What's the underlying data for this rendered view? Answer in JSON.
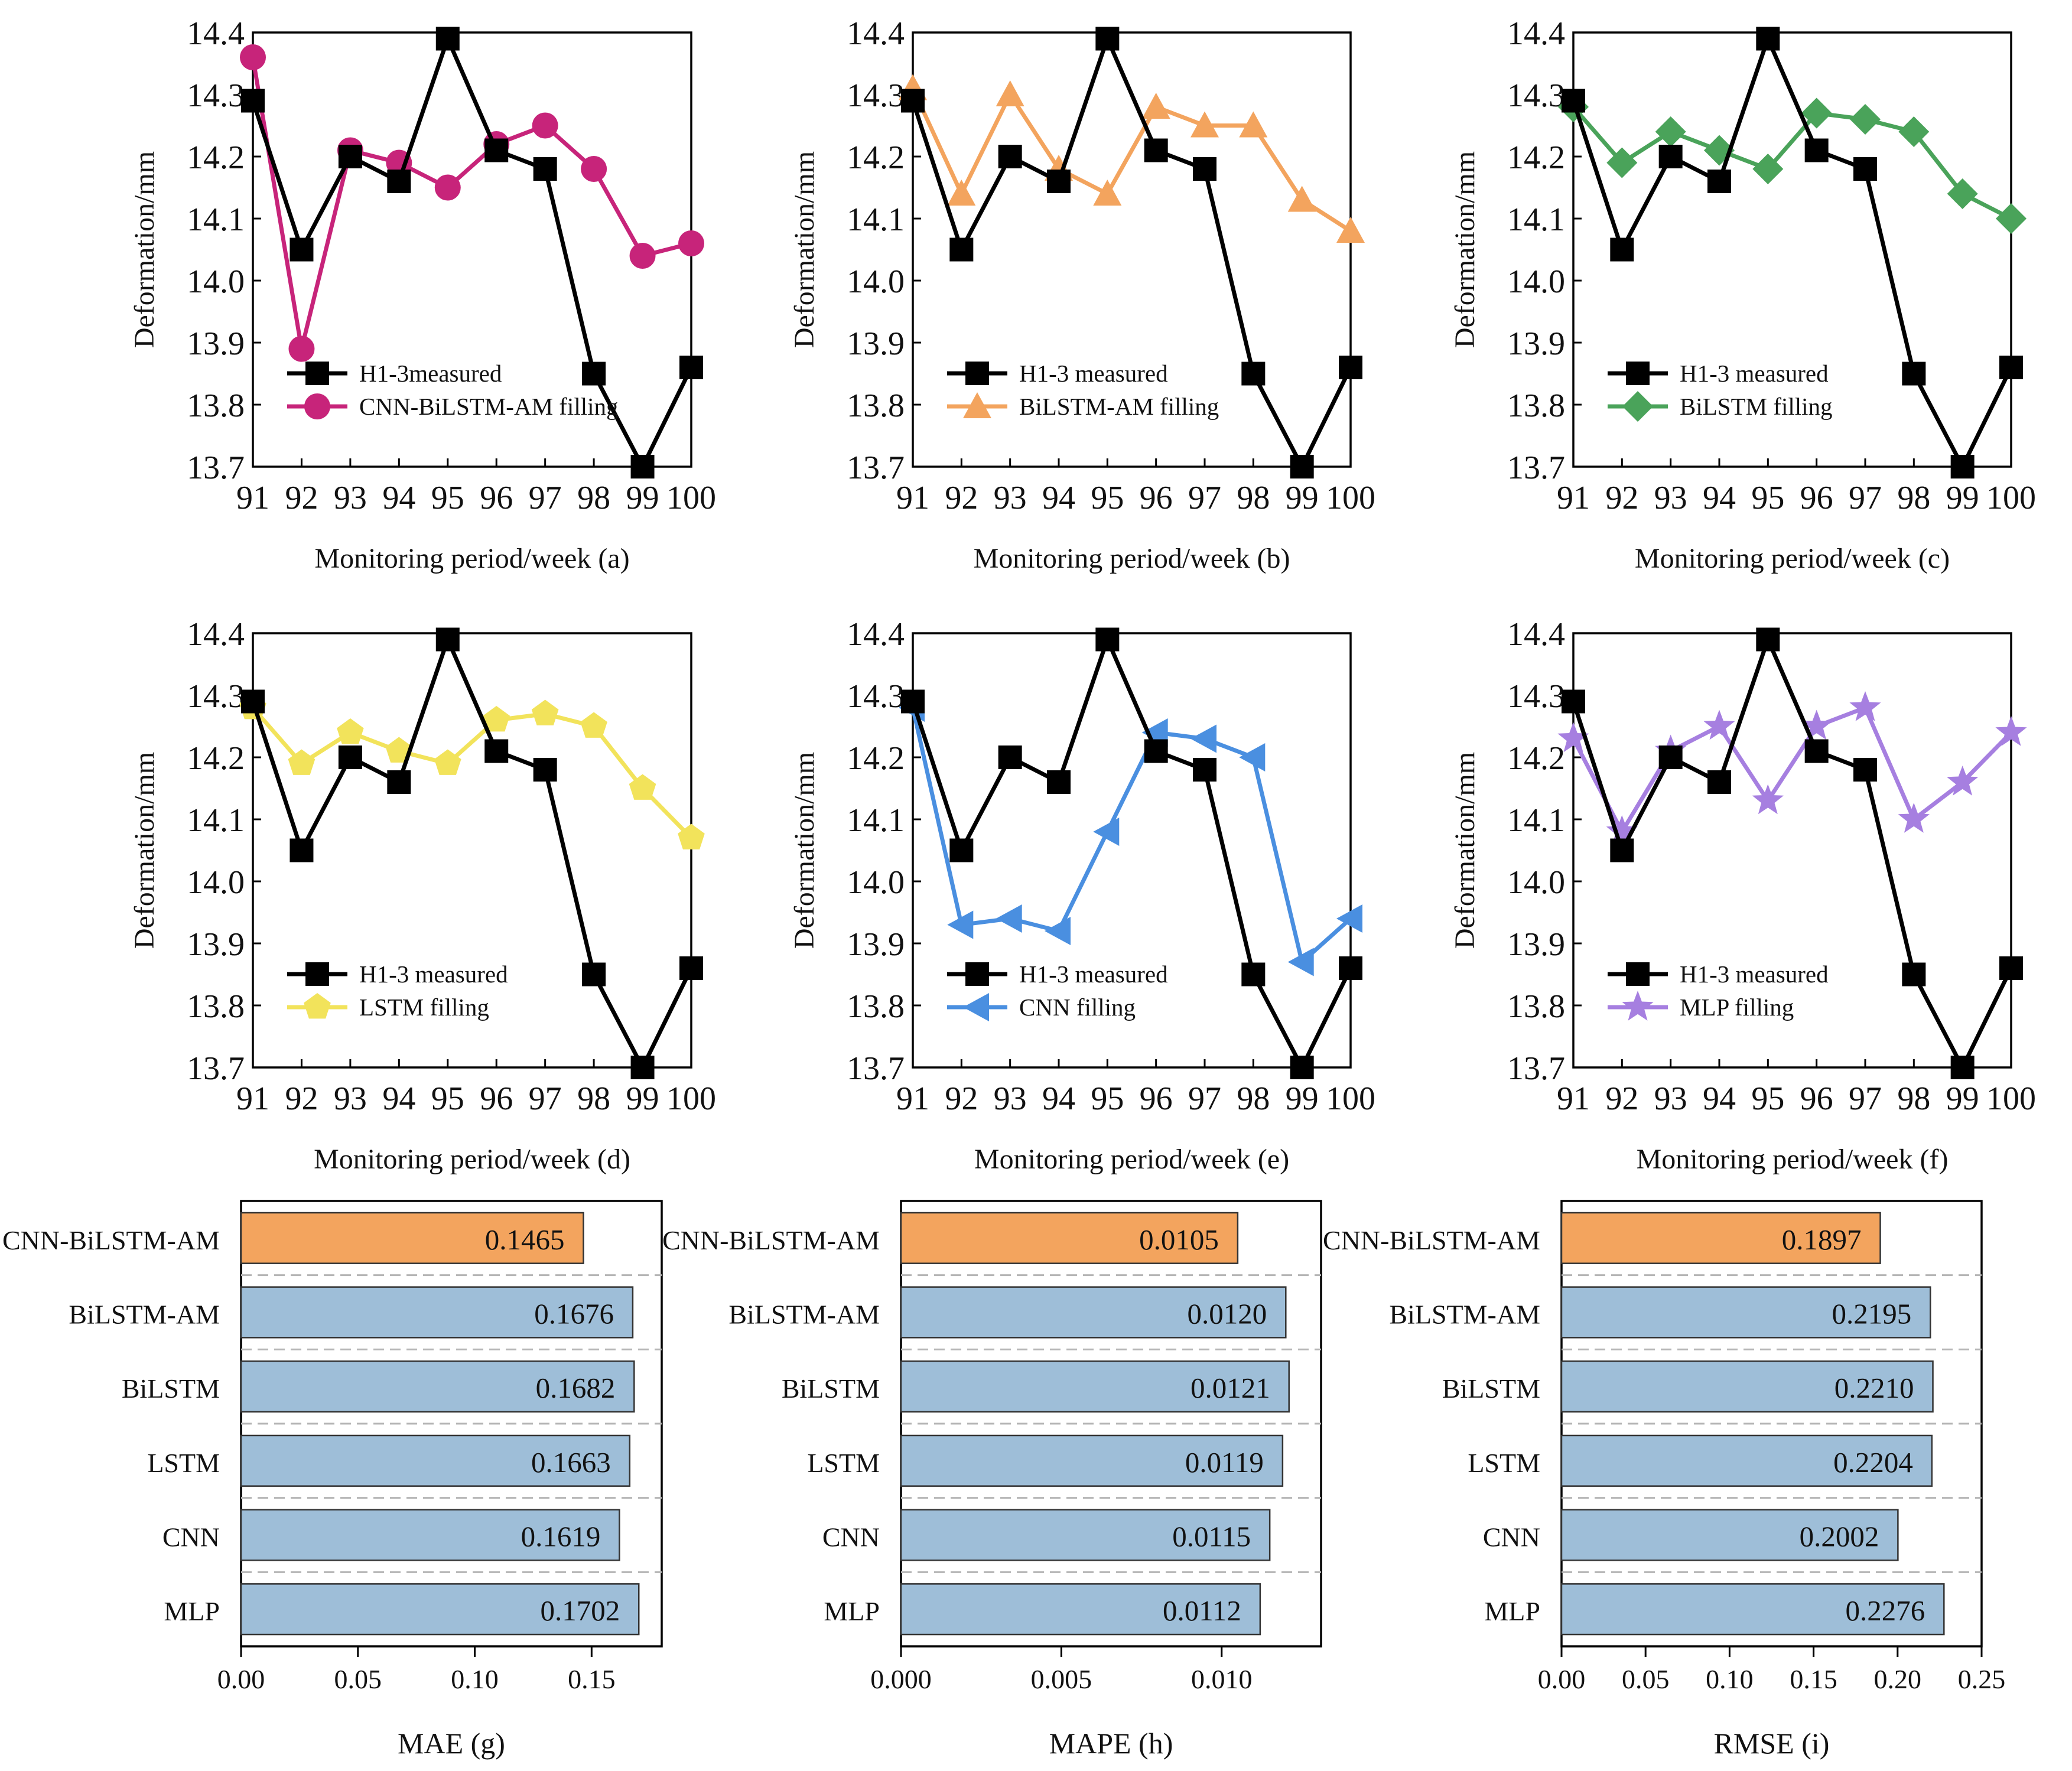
{
  "colors": {
    "measured": "#000000",
    "bar_default": "#9ebed8",
    "bar_best": "#f3a45e",
    "bar_stroke": "#333333"
  },
  "chart_data": [
    {
      "id": "a",
      "type": "line",
      "title": "",
      "xlabel": "Monitoring period/week (a)",
      "ylabel": "Deformation/mm",
      "x": [
        91,
        92,
        93,
        94,
        95,
        96,
        97,
        98,
        99,
        100
      ],
      "xlim": [
        91,
        100
      ],
      "ylim": [
        13.7,
        14.4
      ],
      "xticks": [
        "91",
        "92",
        "93",
        "94",
        "95",
        "96",
        "97",
        "98",
        "99",
        "100"
      ],
      "yticks": [
        "13.7",
        "13.8",
        "13.9",
        "14.0",
        "14.1",
        "14.2",
        "14.3",
        "14.4"
      ],
      "legend_position": "lower-left",
      "series": [
        {
          "name": "H1-3measured",
          "marker": "square",
          "color": "#000000",
          "values": [
            14.29,
            14.05,
            14.2,
            14.16,
            14.39,
            14.21,
            14.18,
            13.85,
            13.7,
            13.86
          ]
        },
        {
          "name": "CNN-BiLSTM-AM filling",
          "marker": "circle",
          "color": "#c7247a",
          "values": [
            14.36,
            13.89,
            14.21,
            14.19,
            14.15,
            14.22,
            14.25,
            14.18,
            14.04,
            14.06
          ]
        }
      ]
    },
    {
      "id": "b",
      "type": "line",
      "title": "",
      "xlabel": "Monitoring period/week (b)",
      "ylabel": "Deformation/mm",
      "x": [
        91,
        92,
        93,
        94,
        95,
        96,
        97,
        98,
        99,
        100
      ],
      "xlim": [
        91,
        100
      ],
      "ylim": [
        13.7,
        14.4
      ],
      "xticks": [
        "91",
        "92",
        "93",
        "94",
        "95",
        "96",
        "97",
        "98",
        "99",
        "100"
      ],
      "yticks": [
        "13.7",
        "13.8",
        "13.9",
        "14.0",
        "14.1",
        "14.2",
        "14.3",
        "14.4"
      ],
      "legend_position": "lower-left",
      "series": [
        {
          "name": "H1-3 measured",
          "marker": "square",
          "color": "#000000",
          "values": [
            14.29,
            14.05,
            14.2,
            14.16,
            14.39,
            14.21,
            14.18,
            13.85,
            13.7,
            13.86
          ]
        },
        {
          "name": "BiLSTM-AM filling",
          "marker": "triangle",
          "color": "#f3a45e",
          "values": [
            14.31,
            14.14,
            14.3,
            14.18,
            14.14,
            14.28,
            14.25,
            14.25,
            14.13,
            14.08
          ]
        }
      ]
    },
    {
      "id": "c",
      "type": "line",
      "title": "",
      "xlabel": "Monitoring period/week (c)",
      "ylabel": "Deformation/mm",
      "x": [
        91,
        92,
        93,
        94,
        95,
        96,
        97,
        98,
        99,
        100
      ],
      "xlim": [
        91,
        100
      ],
      "ylim": [
        13.7,
        14.4
      ],
      "xticks": [
        "91",
        "92",
        "93",
        "94",
        "95",
        "96",
        "97",
        "98",
        "99",
        "100"
      ],
      "yticks": [
        "13.7",
        "13.8",
        "13.9",
        "14.0",
        "14.1",
        "14.2",
        "14.3",
        "14.4"
      ],
      "legend_position": "lower-left",
      "series": [
        {
          "name": "H1-3 measured",
          "marker": "square",
          "color": "#000000",
          "values": [
            14.29,
            14.05,
            14.2,
            14.16,
            14.39,
            14.21,
            14.18,
            13.85,
            13.7,
            13.86
          ]
        },
        {
          "name": "BiLSTM filling",
          "marker": "diamond",
          "color": "#4aa35a",
          "values": [
            14.28,
            14.19,
            14.24,
            14.21,
            14.18,
            14.27,
            14.26,
            14.24,
            14.14,
            14.1
          ]
        }
      ]
    },
    {
      "id": "d",
      "type": "line",
      "title": "",
      "xlabel": "Monitoring period/week (d)",
      "ylabel": "Deformation/mm",
      "x": [
        91,
        92,
        93,
        94,
        95,
        96,
        97,
        98,
        99,
        100
      ],
      "xlim": [
        91,
        100
      ],
      "ylim": [
        13.7,
        14.4
      ],
      "xticks": [
        "91",
        "92",
        "93",
        "94",
        "95",
        "96",
        "97",
        "98",
        "99",
        "100"
      ],
      "yticks": [
        "13.7",
        "13.8",
        "13.9",
        "14.0",
        "14.1",
        "14.2",
        "14.3",
        "14.4"
      ],
      "legend_position": "lower-left",
      "series": [
        {
          "name": "H1-3 measured",
          "marker": "square",
          "color": "#000000",
          "values": [
            14.29,
            14.05,
            14.2,
            14.16,
            14.39,
            14.21,
            14.18,
            13.85,
            13.7,
            13.86
          ]
        },
        {
          "name": "LSTM filling",
          "marker": "pentagon",
          "color": "#f2e35b",
          "values": [
            14.28,
            14.19,
            14.24,
            14.21,
            14.19,
            14.26,
            14.27,
            14.25,
            14.15,
            14.07
          ]
        }
      ]
    },
    {
      "id": "e",
      "type": "line",
      "title": "",
      "xlabel": "Monitoring period/week (e)",
      "ylabel": "Deformation/mm",
      "x": [
        91,
        92,
        93,
        94,
        95,
        96,
        97,
        98,
        99,
        100
      ],
      "xlim": [
        91,
        100
      ],
      "ylim": [
        13.7,
        14.4
      ],
      "xticks": [
        "91",
        "92",
        "93",
        "94",
        "95",
        "96",
        "97",
        "98",
        "99",
        "100"
      ],
      "yticks": [
        "13.7",
        "13.8",
        "13.9",
        "14.0",
        "14.1",
        "14.2",
        "14.3",
        "14.4"
      ],
      "legend_position": "lower-left",
      "series": [
        {
          "name": "H1-3 measured",
          "marker": "square",
          "color": "#000000",
          "values": [
            14.29,
            14.05,
            14.2,
            14.16,
            14.39,
            14.21,
            14.18,
            13.85,
            13.7,
            13.86
          ]
        },
        {
          "name": "CNN filling",
          "marker": "triangle-left",
          "color": "#4a8fe0",
          "values": [
            14.28,
            13.93,
            13.94,
            13.92,
            14.08,
            14.24,
            14.23,
            14.2,
            13.87,
            13.94
          ]
        }
      ]
    },
    {
      "id": "f",
      "type": "line",
      "title": "",
      "xlabel": "Monitoring period/week (f)",
      "ylabel": "Deformation/mm",
      "x": [
        91,
        92,
        93,
        94,
        95,
        96,
        97,
        98,
        99,
        100
      ],
      "xlim": [
        91,
        100
      ],
      "ylim": [
        13.7,
        14.4
      ],
      "xticks": [
        "91",
        "92",
        "93",
        "94",
        "95",
        "96",
        "97",
        "98",
        "99",
        "100"
      ],
      "yticks": [
        "13.7",
        "13.8",
        "13.9",
        "14.0",
        "14.1",
        "14.2",
        "14.3",
        "14.4"
      ],
      "legend_position": "lower-left",
      "series": [
        {
          "name": "H1-3 measured",
          "marker": "square",
          "color": "#000000",
          "values": [
            14.29,
            14.05,
            14.2,
            14.16,
            14.39,
            14.21,
            14.18,
            13.85,
            13.7,
            13.86
          ]
        },
        {
          "name": "MLP filling",
          "marker": "star",
          "color": "#a67fe0",
          "values": [
            14.23,
            14.08,
            14.21,
            14.25,
            14.13,
            14.25,
            14.28,
            14.1,
            14.16,
            14.24
          ]
        }
      ]
    },
    {
      "id": "g",
      "type": "bar",
      "orientation": "horizontal",
      "title": "",
      "xlabel": "MAE (g)",
      "ylabel": "",
      "categories": [
        "CNN-BiLSTM-AM",
        "BiLSTM-AM",
        "BiLSTM",
        "LSTM",
        "CNN",
        "MLP"
      ],
      "values": [
        0.1465,
        0.1676,
        0.1682,
        0.1663,
        0.1619,
        0.1702
      ],
      "value_labels": [
        "0.1465",
        "0.1676",
        "0.1682",
        "0.1663",
        "0.1619",
        "0.1702"
      ],
      "highlight": "CNN-BiLSTM-AM",
      "xlim": [
        0,
        0.18
      ],
      "xticks": [
        0,
        0.05,
        0.1,
        0.15
      ],
      "xtick_labels": [
        "0.00",
        "0.05",
        "0.10",
        "0.15"
      ]
    },
    {
      "id": "h",
      "type": "bar",
      "orientation": "horizontal",
      "title": "",
      "xlabel": "MAPE (h)",
      "ylabel": "",
      "categories": [
        "CNN-BiLSTM-AM",
        "BiLSTM-AM",
        "BiLSTM",
        "LSTM",
        "CNN",
        "MLP"
      ],
      "values": [
        0.0105,
        0.012,
        0.0121,
        0.0119,
        0.0115,
        0.0112
      ],
      "value_labels": [
        "0.0105",
        "0.0120",
        "0.0121",
        "0.0119",
        "0.0115",
        "0.0112"
      ],
      "highlight": "CNN-BiLSTM-AM",
      "xlim": [
        0,
        0.0131
      ],
      "xticks": [
        0,
        0.005,
        0.01
      ],
      "xtick_labels": [
        "0.000",
        "0.005",
        "0.010"
      ]
    },
    {
      "id": "i",
      "type": "bar",
      "orientation": "horizontal",
      "title": "",
      "xlabel": "RMSE (i)",
      "ylabel": "",
      "categories": [
        "CNN-BiLSTM-AM",
        "BiLSTM-AM",
        "BiLSTM",
        "LSTM",
        "CNN",
        "MLP"
      ],
      "values": [
        0.1897,
        0.2195,
        0.221,
        0.2204,
        0.2002,
        0.2276
      ],
      "value_labels": [
        "0.1897",
        "0.2195",
        "0.2210",
        "0.2204",
        "0.2002",
        "0.2276"
      ],
      "highlight": "CNN-BiLSTM-AM",
      "xlim": [
        0,
        0.25
      ],
      "xticks": [
        0,
        0.05,
        0.1,
        0.15,
        0.2,
        0.25
      ],
      "xtick_labels": [
        "0.00",
        "0.05",
        "0.10",
        "0.15",
        "0.20",
        "0.25"
      ]
    }
  ]
}
